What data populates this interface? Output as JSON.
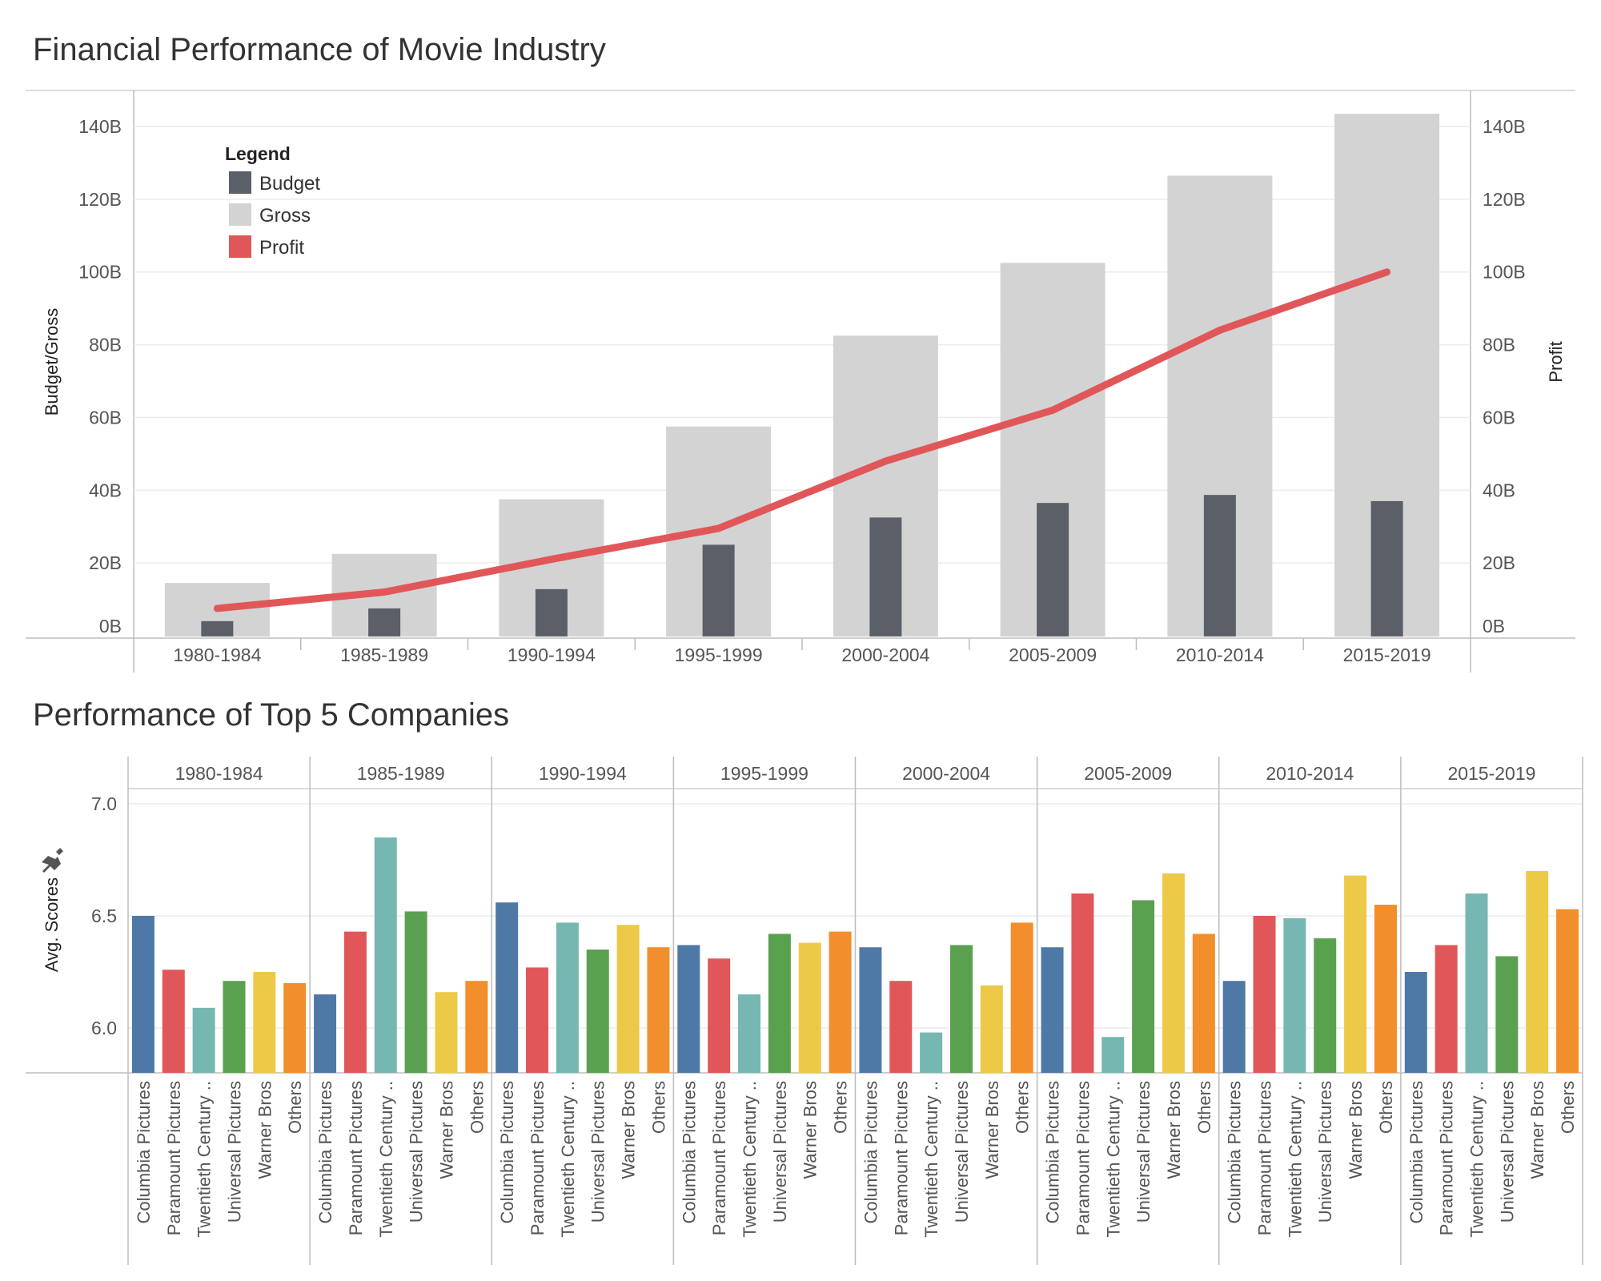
{
  "colors": {
    "budget": "#5b5f68",
    "gross": "#d3d3d3",
    "profit": "#e15759",
    "companies": [
      "#4e79a7",
      "#e15759",
      "#76b7b2",
      "#59a14f",
      "#edc948",
      "#f28e2b"
    ]
  },
  "chart_data": [
    {
      "type": "bar",
      "title": "Financial Performance of Movie Industry",
      "categories": [
        "1980-1984",
        "1985-1989",
        "1990-1994",
        "1995-1999",
        "2000-2004",
        "2005-2009",
        "2010-2014",
        "2015-2019"
      ],
      "series": [
        {
          "name": "Budget",
          "type": "bar",
          "axis": "left",
          "values": [
            4,
            7.5,
            12.8,
            25,
            32.5,
            36.5,
            38.7,
            37
          ]
        },
        {
          "name": "Gross",
          "type": "bar",
          "axis": "left",
          "values": [
            14.5,
            22.5,
            37.5,
            57.5,
            82.5,
            102.5,
            126.5,
            143.5
          ]
        },
        {
          "name": "Profit",
          "type": "line",
          "axis": "right",
          "values": [
            7.5,
            12,
            21,
            29.5,
            48,
            62,
            84,
            100
          ]
        }
      ],
      "ylabel": "Budget/Gross",
      "y2label": "Profit",
      "ylim": [
        0,
        150
      ],
      "yticks": [
        0,
        20,
        40,
        60,
        80,
        100,
        120,
        140
      ],
      "ytick_labels": [
        "0B",
        "20B",
        "40B",
        "60B",
        "80B",
        "100B",
        "120B",
        "140B"
      ],
      "legend": {
        "title": "Legend",
        "placement": "top-left"
      },
      "grid": true
    },
    {
      "type": "bar",
      "title": "Performance of Top 5 Companies",
      "periods": [
        "1980-1984",
        "1985-1989",
        "1990-1994",
        "1995-1999",
        "2000-2004",
        "2005-2009",
        "2010-2014",
        "2015-2019"
      ],
      "categories": [
        "Columbia Pictures",
        "Paramount Pictures",
        "Twentieth Century ..",
        "Universal Pictures",
        "Warner Bros",
        "Others"
      ],
      "values": [
        [
          6.5,
          6.26,
          6.09,
          6.21,
          6.25,
          6.2
        ],
        [
          6.15,
          6.43,
          6.85,
          6.52,
          6.16,
          6.21
        ],
        [
          6.56,
          6.27,
          6.47,
          6.35,
          6.46,
          6.36
        ],
        [
          6.37,
          6.31,
          6.15,
          6.42,
          6.38,
          6.43
        ],
        [
          6.36,
          6.21,
          5.98,
          6.37,
          6.19,
          6.47
        ],
        [
          6.36,
          6.6,
          5.96,
          6.57,
          6.69,
          6.42
        ],
        [
          6.21,
          6.5,
          6.49,
          6.4,
          6.68,
          6.55
        ],
        [
          6.25,
          6.37,
          6.6,
          6.32,
          6.7,
          6.53
        ]
      ],
      "ylabel": "Avg. Scores",
      "ylim": [
        5.8,
        7.0
      ],
      "yticks": [
        6.0,
        6.5,
        7.0
      ],
      "ytick_labels": [
        "6.0",
        "6.5",
        "7.0"
      ],
      "grid": true
    }
  ]
}
